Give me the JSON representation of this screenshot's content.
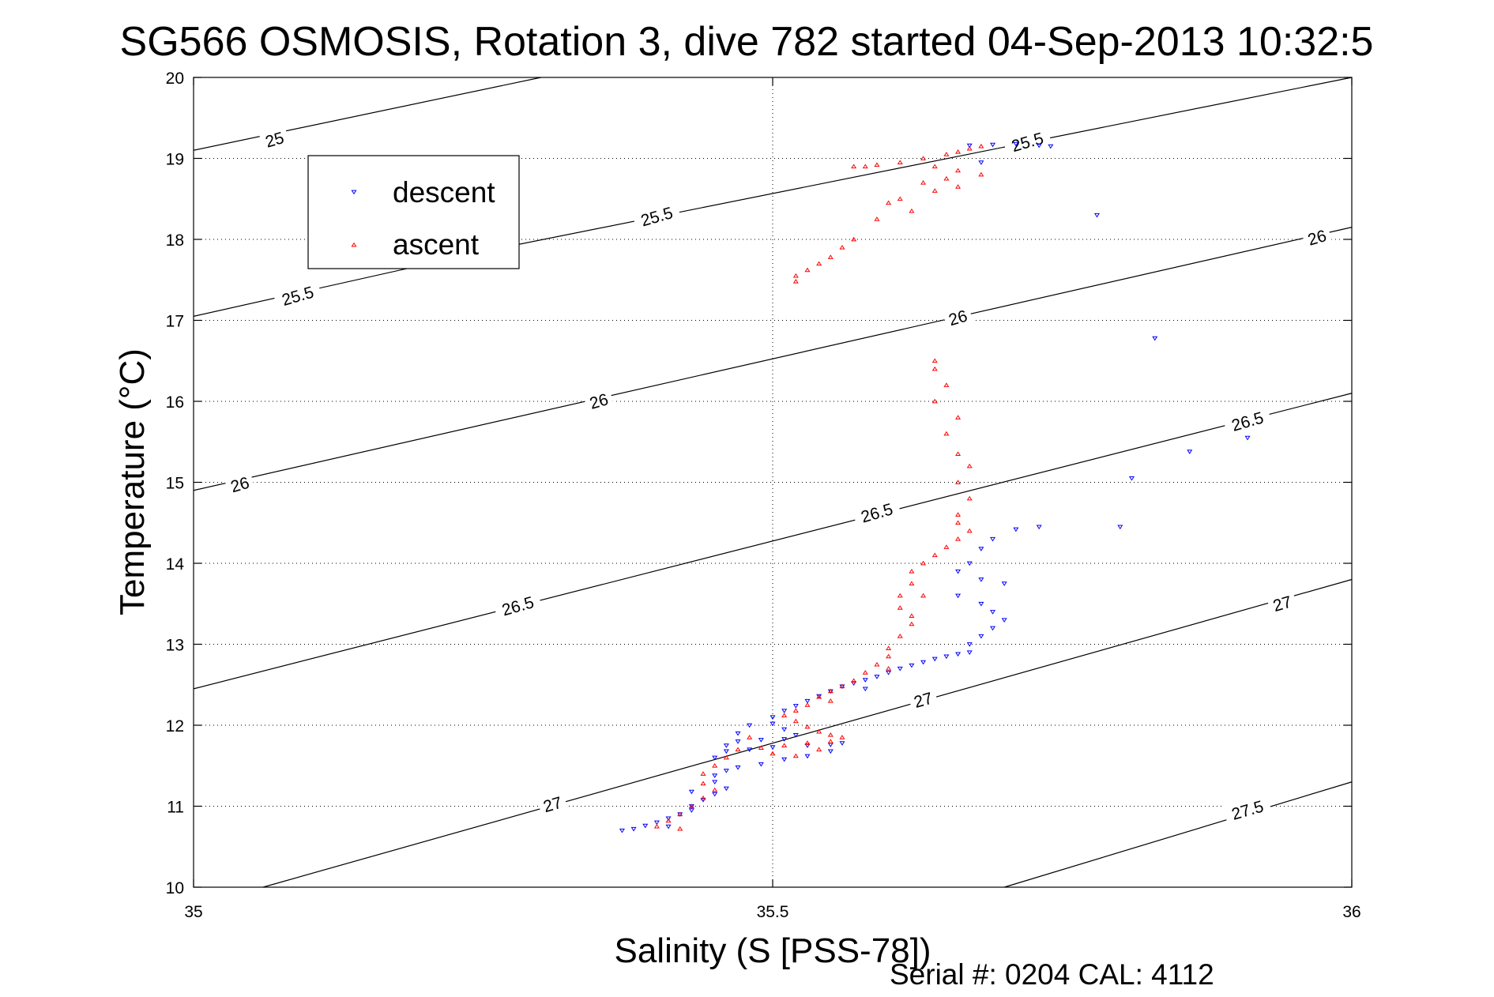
{
  "chart_data": {
    "type": "scatter",
    "title": "SG566 OSMOSIS, Rotation 3, dive 782 started 04-Sep-2013 10:32:5",
    "xlabel": "Salinity (S [PSS-78])",
    "ylabel": "Temperature (°C)",
    "xlim": [
      35,
      36
    ],
    "ylim": [
      10,
      20
    ],
    "x_ticks": [
      "35",
      "35.5",
      "36"
    ],
    "y_ticks": [
      "10",
      "11",
      "12",
      "13",
      "14",
      "15",
      "16",
      "17",
      "18",
      "19",
      "20"
    ],
    "grid": true,
    "legend_position": "top-left",
    "footer": "Serial #: 0204  CAL: 4112",
    "density_contours": {
      "levels": [
        25,
        25.5,
        26,
        26.5,
        27,
        27.5
      ],
      "lines": [
        {
          "level": 25,
          "x": [
            35,
            35.3
          ],
          "y": [
            19.1,
            20.0
          ]
        },
        {
          "level": 25.5,
          "x": [
            35,
            35.25
          ],
          "y": [
            17.05,
            17.85
          ]
        },
        {
          "level": 25.5,
          "x": [
            35.25,
            36
          ],
          "y": [
            17.85,
            20.0
          ]
        },
        {
          "level": 26,
          "x": [
            35,
            36
          ],
          "y": [
            14.9,
            18.15
          ]
        },
        {
          "level": 26.5,
          "x": [
            35,
            36
          ],
          "y": [
            12.45,
            16.1
          ]
        },
        {
          "level": 27,
          "x": [
            35.06,
            36
          ],
          "y": [
            10.0,
            13.8
          ]
        },
        {
          "level": 27.5,
          "x": [
            35.7,
            36
          ],
          "y": [
            10.0,
            11.3
          ]
        }
      ],
      "labels": [
        {
          "text": "25",
          "x": 35.07,
          "y": 19.23
        },
        {
          "text": "25.5",
          "x": 35.09,
          "y": 17.3
        },
        {
          "text": "25.5",
          "x": 35.4,
          "y": 18.28
        },
        {
          "text": "25.5",
          "x": 35.72,
          "y": 19.2
        },
        {
          "text": "26",
          "x": 35.04,
          "y": 14.97
        },
        {
          "text": "26",
          "x": 35.35,
          "y": 16.0
        },
        {
          "text": "26",
          "x": 35.66,
          "y": 17.03
        },
        {
          "text": "26",
          "x": 35.97,
          "y": 18.02
        },
        {
          "text": "26.5",
          "x": 35.28,
          "y": 13.47
        },
        {
          "text": "26.5",
          "x": 35.59,
          "y": 14.62
        },
        {
          "text": "26.5",
          "x": 35.91,
          "y": 15.75
        },
        {
          "text": "27",
          "x": 35.31,
          "y": 11.02
        },
        {
          "text": "27",
          "x": 35.63,
          "y": 12.31
        },
        {
          "text": "27",
          "x": 35.94,
          "y": 13.5
        },
        {
          "text": "27.5",
          "x": 35.91,
          "y": 10.95
        }
      ]
    },
    "series": [
      {
        "name": "descent",
        "color": "#0000ff",
        "marker": "triangle-down",
        "points": [
          [
            35.74,
            19.15
          ],
          [
            35.73,
            19.16
          ],
          [
            35.71,
            19.18
          ],
          [
            35.69,
            19.17
          ],
          [
            35.67,
            19.16
          ],
          [
            35.68,
            18.95
          ],
          [
            35.78,
            18.3
          ],
          [
            35.83,
            16.78
          ],
          [
            35.86,
            15.38
          ],
          [
            35.81,
            15.05
          ],
          [
            35.91,
            15.55
          ],
          [
            35.8,
            14.45
          ],
          [
            35.73,
            14.45
          ],
          [
            35.71,
            14.42
          ],
          [
            35.69,
            14.3
          ],
          [
            35.68,
            14.18
          ],
          [
            35.67,
            14.0
          ],
          [
            35.66,
            13.9
          ],
          [
            35.68,
            13.8
          ],
          [
            35.7,
            13.75
          ],
          [
            35.66,
            13.6
          ],
          [
            35.68,
            13.5
          ],
          [
            35.69,
            13.4
          ],
          [
            35.7,
            13.3
          ],
          [
            35.69,
            13.2
          ],
          [
            35.68,
            13.1
          ],
          [
            35.67,
            13.0
          ],
          [
            35.67,
            12.9
          ],
          [
            35.66,
            12.88
          ],
          [
            35.65,
            12.85
          ],
          [
            35.64,
            12.82
          ],
          [
            35.63,
            12.78
          ],
          [
            35.62,
            12.74
          ],
          [
            35.61,
            12.7
          ],
          [
            35.6,
            12.65
          ],
          [
            35.59,
            12.6
          ],
          [
            35.58,
            12.56
          ],
          [
            35.57,
            12.52
          ],
          [
            35.56,
            12.48
          ],
          [
            35.55,
            12.42
          ],
          [
            35.54,
            12.36
          ],
          [
            35.53,
            12.3
          ],
          [
            35.52,
            12.24
          ],
          [
            35.51,
            12.18
          ],
          [
            35.5,
            12.1
          ],
          [
            35.5,
            12.02
          ],
          [
            35.51,
            11.95
          ],
          [
            35.52,
            11.88
          ],
          [
            35.51,
            11.83
          ],
          [
            35.49,
            11.82
          ],
          [
            35.47,
            11.8
          ],
          [
            35.46,
            11.75
          ],
          [
            35.46,
            11.68
          ],
          [
            35.48,
            11.7
          ],
          [
            35.5,
            11.73
          ],
          [
            35.53,
            11.75
          ],
          [
            35.55,
            11.76
          ],
          [
            35.56,
            11.78
          ],
          [
            35.55,
            11.68
          ],
          [
            35.53,
            11.62
          ],
          [
            35.51,
            11.58
          ],
          [
            35.49,
            11.52
          ],
          [
            35.47,
            11.48
          ],
          [
            35.46,
            11.44
          ],
          [
            35.45,
            11.38
          ],
          [
            35.45,
            11.3
          ],
          [
            35.46,
            11.22
          ],
          [
            35.45,
            11.15
          ],
          [
            35.44,
            11.08
          ],
          [
            35.43,
            11.0
          ],
          [
            35.43,
            10.95
          ],
          [
            35.42,
            10.9
          ],
          [
            35.41,
            10.85
          ],
          [
            35.4,
            10.8
          ],
          [
            35.39,
            10.76
          ],
          [
            35.38,
            10.72
          ],
          [
            35.37,
            10.7
          ],
          [
            35.43,
            11.18
          ],
          [
            35.47,
            11.9
          ],
          [
            35.45,
            11.6
          ],
          [
            35.41,
            10.75
          ],
          [
            35.48,
            12.0
          ],
          [
            35.58,
            12.45
          ]
        ]
      },
      {
        "name": "ascent",
        "color": "#ff0000",
        "marker": "triangle-up",
        "points": [
          [
            35.57,
            18.9
          ],
          [
            35.58,
            18.9
          ],
          [
            35.59,
            18.92
          ],
          [
            35.61,
            18.95
          ],
          [
            35.63,
            19.0
          ],
          [
            35.65,
            19.05
          ],
          [
            35.66,
            19.08
          ],
          [
            35.67,
            19.12
          ],
          [
            35.68,
            19.15
          ],
          [
            35.64,
            18.9
          ],
          [
            35.66,
            18.85
          ],
          [
            35.68,
            18.8
          ],
          [
            35.65,
            18.75
          ],
          [
            35.63,
            18.7
          ],
          [
            35.66,
            18.65
          ],
          [
            35.64,
            18.6
          ],
          [
            35.61,
            18.5
          ],
          [
            35.6,
            18.45
          ],
          [
            35.62,
            18.35
          ],
          [
            35.59,
            18.25
          ],
          [
            35.57,
            18.0
          ],
          [
            35.56,
            17.9
          ],
          [
            35.55,
            17.78
          ],
          [
            35.54,
            17.7
          ],
          [
            35.53,
            17.62
          ],
          [
            35.52,
            17.55
          ],
          [
            35.52,
            17.48
          ],
          [
            35.64,
            16.5
          ],
          [
            35.65,
            16.2
          ],
          [
            35.64,
            16.0
          ],
          [
            35.66,
            15.8
          ],
          [
            35.65,
            15.6
          ],
          [
            35.66,
            15.35
          ],
          [
            35.67,
            15.2
          ],
          [
            35.66,
            15.0
          ],
          [
            35.67,
            14.8
          ],
          [
            35.66,
            14.6
          ],
          [
            35.67,
            14.4
          ],
          [
            35.66,
            14.3
          ],
          [
            35.65,
            14.2
          ],
          [
            35.64,
            14.1
          ],
          [
            35.63,
            14.0
          ],
          [
            35.62,
            13.9
          ],
          [
            35.62,
            13.75
          ],
          [
            35.61,
            13.6
          ],
          [
            35.61,
            13.45
          ],
          [
            35.62,
            13.35
          ],
          [
            35.62,
            13.25
          ],
          [
            35.61,
            13.1
          ],
          [
            35.6,
            12.95
          ],
          [
            35.6,
            12.85
          ],
          [
            35.59,
            12.75
          ],
          [
            35.58,
            12.65
          ],
          [
            35.57,
            12.55
          ],
          [
            35.56,
            12.48
          ],
          [
            35.55,
            12.42
          ],
          [
            35.54,
            12.35
          ],
          [
            35.53,
            12.25
          ],
          [
            35.52,
            12.18
          ],
          [
            35.51,
            12.12
          ],
          [
            35.52,
            12.05
          ],
          [
            35.53,
            11.98
          ],
          [
            35.54,
            11.92
          ],
          [
            35.55,
            11.88
          ],
          [
            35.56,
            11.85
          ],
          [
            35.55,
            11.8
          ],
          [
            35.53,
            11.78
          ],
          [
            35.51,
            11.75
          ],
          [
            35.49,
            11.72
          ],
          [
            35.47,
            11.7
          ],
          [
            35.46,
            11.6
          ],
          [
            35.45,
            11.5
          ],
          [
            35.44,
            11.4
          ],
          [
            35.44,
            11.28
          ],
          [
            35.45,
            11.2
          ],
          [
            35.44,
            11.1
          ],
          [
            35.43,
            11.0
          ],
          [
            35.42,
            10.9
          ],
          [
            35.41,
            10.82
          ],
          [
            35.4,
            10.75
          ],
          [
            35.42,
            10.72
          ],
          [
            35.5,
            11.65
          ],
          [
            35.52,
            11.62
          ],
          [
            35.54,
            11.7
          ],
          [
            35.48,
            11.85
          ],
          [
            35.55,
            12.3
          ],
          [
            35.6,
            12.7
          ],
          [
            35.63,
            13.6
          ],
          [
            35.66,
            14.5
          ],
          [
            35.64,
            16.4
          ]
        ]
      }
    ]
  }
}
